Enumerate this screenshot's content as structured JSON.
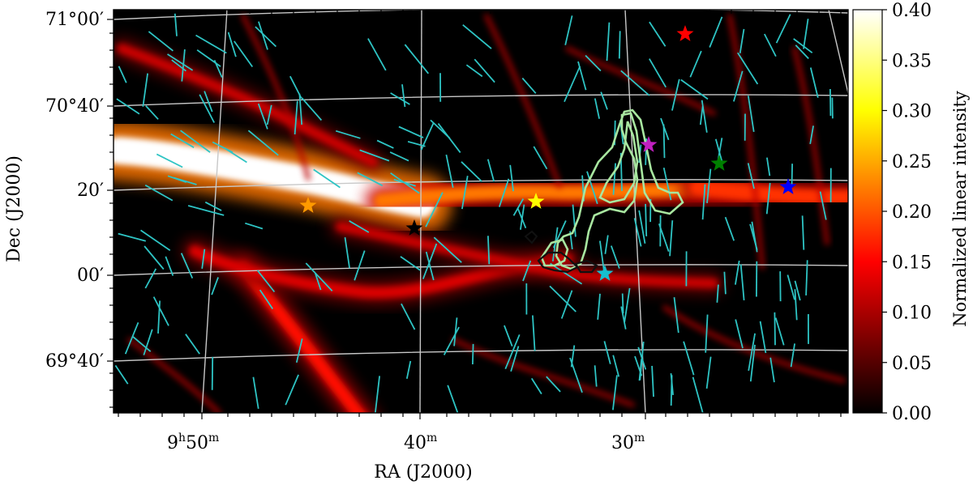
{
  "chart_data": {
    "type": "heatmap",
    "map": "normalized linear polarization intensity with polarization vectors and contours",
    "xlabel": "RA (J2000)",
    "ylabel": "Dec (J2000)",
    "x_ticks": [
      {
        "main": "9",
        "sup1": "h",
        "mid": "50",
        "sup2": "m"
      },
      {
        "main": "40",
        "sup2": "m"
      },
      {
        "main": "30",
        "sup2": "m"
      }
    ],
    "y_ticks": [
      {
        "deg": "71",
        "min": "00"
      },
      {
        "deg": "70",
        "min": "40"
      },
      {
        "min": "20"
      },
      {
        "min": "00"
      },
      {
        "deg": "69",
        "min": "40"
      }
    ],
    "colorbar": {
      "label": "Normalized linear intensity",
      "ticks": [
        "0.00",
        "0.05",
        "0.10",
        "0.15",
        "0.20",
        "0.25",
        "0.30",
        "0.35",
        "0.40"
      ],
      "range": [
        0.0,
        0.4
      ],
      "colormap": "hot"
    },
    "filaments": [
      {
        "name": "main-ridge",
        "peak": 0.4
      },
      {
        "name": "central-ridge",
        "peak": 0.22
      },
      {
        "name": "eastern-extension",
        "peak": 0.18
      },
      {
        "name": "southern-diagonal",
        "peak": 0.16
      },
      {
        "name": "lower-left-diagonal",
        "peak": 0.13
      },
      {
        "name": "upper-arc",
        "peak": 0.12
      },
      {
        "name": "lower-central-arc",
        "peak": 0.12
      }
    ],
    "stars": [
      {
        "name": "orange-star",
        "color": "#ff9a00"
      },
      {
        "name": "black-star",
        "color": "#000000"
      },
      {
        "name": "yellow-star",
        "color": "#ffff00"
      },
      {
        "name": "cyan-star",
        "color": "#17becf"
      },
      {
        "name": "magenta-star",
        "color": "#c020c0"
      },
      {
        "name": "red-star",
        "color": "#ff0000"
      },
      {
        "name": "green-star",
        "color": "#008000"
      },
      {
        "name": "blue-star",
        "color": "#0000ff"
      }
    ],
    "vectors": {
      "color": "#2ec4c4"
    },
    "contours": [
      {
        "name": "green-contours",
        "color": "#a8e6a0"
      },
      {
        "name": "black-contours",
        "color": "#111111"
      }
    ],
    "grid": true
  }
}
